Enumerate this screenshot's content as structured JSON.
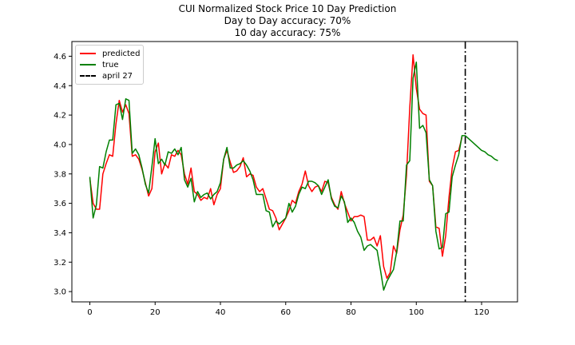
{
  "chart_data": {
    "type": "line",
    "title": [
      "CUI Normalized Stock Price 10 Day Prediction",
      "Day to Day accuracy: 70%",
      "10 day accuracy: 75%"
    ],
    "xlabel": "",
    "ylabel": "",
    "xlim": [
      -5.5,
      131
    ],
    "ylim": [
      2.93,
      4.7
    ],
    "x_ticks": [
      0,
      20,
      40,
      60,
      80,
      100,
      120
    ],
    "y_ticks": [
      3.0,
      3.2,
      3.4,
      3.6,
      3.8,
      4.0,
      4.2,
      4.4,
      4.6
    ],
    "grid": false,
    "legend_position": "upper-left",
    "series": [
      {
        "name": "predicted",
        "color": "#ff0000",
        "x_start": 0,
        "values": [
          3.77,
          3.6,
          3.56,
          3.56,
          3.8,
          3.87,
          3.93,
          3.92,
          4.14,
          4.3,
          4.22,
          4.27,
          4.21,
          3.92,
          3.93,
          3.9,
          3.83,
          3.74,
          3.65,
          3.7,
          3.95,
          4.01,
          3.8,
          3.87,
          3.84,
          3.93,
          3.92,
          3.96,
          3.93,
          3.8,
          3.73,
          3.84,
          3.68,
          3.66,
          3.62,
          3.64,
          3.63,
          3.7,
          3.59,
          3.66,
          3.7,
          3.9,
          3.96,
          3.88,
          3.81,
          3.82,
          3.85,
          3.91,
          3.78,
          3.8,
          3.79,
          3.71,
          3.68,
          3.7,
          3.63,
          3.56,
          3.55,
          3.5,
          3.42,
          3.46,
          3.5,
          3.55,
          3.62,
          3.6,
          3.68,
          3.73,
          3.82,
          3.72,
          3.68,
          3.71,
          3.72,
          3.68,
          3.75,
          3.74,
          3.64,
          3.59,
          3.56,
          3.68,
          3.6,
          3.54,
          3.48,
          3.51,
          3.51,
          3.52,
          3.51,
          3.35,
          3.35,
          3.37,
          3.31,
          3.38,
          3.17,
          3.09,
          3.13,
          3.31,
          3.26,
          3.42,
          3.52,
          3.79,
          4.25,
          4.61,
          4.38,
          4.24,
          4.21,
          4.2,
          3.75,
          3.72,
          3.44,
          3.43,
          3.24,
          3.38,
          3.64,
          3.84,
          3.95,
          3.96,
          4.05
        ]
      },
      {
        "name": "true",
        "color": "#008000",
        "x_start": 0,
        "values": [
          3.78,
          3.5,
          3.59,
          3.85,
          3.84,
          3.95,
          4.03,
          4.03,
          4.27,
          4.28,
          4.17,
          4.31,
          4.3,
          3.94,
          3.97,
          3.93,
          3.84,
          3.73,
          3.67,
          3.85,
          4.04,
          3.87,
          3.9,
          3.86,
          3.95,
          3.94,
          3.97,
          3.93,
          3.98,
          3.76,
          3.71,
          3.77,
          3.61,
          3.68,
          3.64,
          3.66,
          3.67,
          3.63,
          3.66,
          3.68,
          3.74,
          3.9,
          3.98,
          3.84,
          3.84,
          3.86,
          3.87,
          3.89,
          3.86,
          3.82,
          3.76,
          3.66,
          3.66,
          3.66,
          3.55,
          3.54,
          3.44,
          3.48,
          3.46,
          3.48,
          3.5,
          3.6,
          3.54,
          3.58,
          3.66,
          3.71,
          3.7,
          3.75,
          3.75,
          3.74,
          3.72,
          3.66,
          3.71,
          3.76,
          3.63,
          3.58,
          3.57,
          3.65,
          3.61,
          3.47,
          3.5,
          3.47,
          3.41,
          3.37,
          3.28,
          3.31,
          3.32,
          3.3,
          3.28,
          3.15,
          3.01,
          3.07,
          3.11,
          3.15,
          3.27,
          3.48,
          3.48,
          3.86,
          3.89,
          4.45,
          4.56,
          4.11,
          4.13,
          4.08,
          3.76,
          3.72,
          3.41,
          3.29,
          3.3,
          3.53,
          3.54,
          3.78,
          3.86,
          3.93,
          4.06,
          4.06,
          4.04,
          4.02,
          4.0,
          3.98,
          3.96,
          3.95,
          3.93,
          3.92,
          3.9,
          3.89
        ]
      },
      {
        "name": "april 27",
        "color": "#000000",
        "style": "dash-dot",
        "vertical_at_x": 115
      }
    ]
  }
}
